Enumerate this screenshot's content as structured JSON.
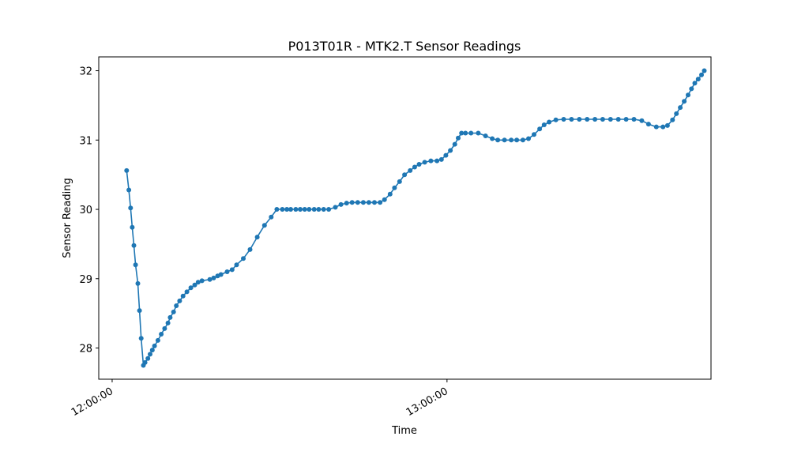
{
  "chart_data": {
    "type": "line",
    "title": "P013T01R - MTK2.T Sensor Readings",
    "xlabel": "Time",
    "ylabel": "Sensor Reading",
    "x_tick_labels": [
      "12:00:00",
      "13:00:00"
    ],
    "x_tick_values_min": [
      0,
      60
    ],
    "xlim_min": [
      -2.4,
      107.3
    ],
    "y_tick_labels": [
      "28",
      "29",
      "30",
      "31",
      "32"
    ],
    "y_tick_values": [
      28,
      29,
      30,
      31,
      32
    ],
    "ylim": [
      27.55,
      32.2
    ],
    "grid": false,
    "legend": "none",
    "series_color": "#1f77b4",
    "series": [
      {
        "x_min": [
          2.6,
          3.0,
          3.3,
          3.6,
          3.9,
          4.2,
          4.6,
          4.9,
          5.2,
          5.6,
          5.9,
          6.4,
          6.8,
          7.2,
          7.6,
          8.2,
          8.8,
          9.4,
          10.0,
          10.4,
          11.0,
          11.5,
          12.1,
          12.7,
          13.4,
          14.1,
          14.8,
          15.4,
          16.1,
          17.5,
          18.2,
          18.9,
          19.5,
          20.6,
          21.5,
          22.3,
          23.5,
          24.7,
          26.0,
          27.3,
          28.5,
          29.5,
          30.5,
          31.3,
          32.0,
          32.9,
          33.7,
          34.5,
          35.3,
          36.2,
          37.0,
          37.9,
          38.8,
          40.0,
          41.0,
          42.0,
          43.0,
          44.0,
          45.0,
          46.0,
          47.0,
          48.0,
          48.8,
          49.8,
          50.6,
          51.5,
          52.4,
          53.4,
          54.2,
          55.0,
          56.0,
          57.1,
          58.2,
          59.0,
          59.8,
          60.6,
          61.4,
          62.0,
          62.6,
          63.3,
          64.3,
          65.6,
          66.9,
          68.1,
          69.1,
          70.3,
          71.5,
          72.5,
          73.6,
          74.6,
          75.6,
          76.6,
          77.4,
          78.3,
          79.5,
          80.9,
          82.3,
          83.7,
          85.1,
          86.5,
          87.9,
          89.3,
          90.7,
          92.1,
          93.5,
          94.9,
          96.1,
          97.5,
          98.7,
          99.5,
          100.4,
          101.1,
          101.8,
          102.5,
          103.2,
          103.8,
          104.4,
          105.0,
          105.6,
          106.1
        ],
        "values": [
          30.56,
          30.28,
          30.02,
          29.74,
          29.48,
          29.2,
          28.93,
          28.54,
          28.14,
          27.75,
          27.79,
          27.85,
          27.91,
          27.97,
          28.03,
          28.11,
          28.2,
          28.28,
          28.36,
          28.44,
          28.52,
          28.61,
          28.68,
          28.75,
          28.81,
          28.87,
          28.91,
          28.95,
          28.97,
          28.99,
          29.01,
          29.04,
          29.06,
          29.1,
          29.13,
          29.2,
          29.29,
          29.42,
          29.6,
          29.77,
          29.89,
          30.0,
          30.0,
          30.0,
          30.0,
          30.0,
          30.0,
          30.0,
          30.0,
          30.0,
          30.0,
          30.0,
          30.0,
          30.03,
          30.07,
          30.09,
          30.1,
          30.1,
          30.1,
          30.1,
          30.1,
          30.1,
          30.14,
          30.22,
          30.31,
          30.4,
          30.5,
          30.56,
          30.61,
          30.65,
          30.68,
          30.7,
          30.7,
          30.72,
          30.78,
          30.85,
          30.94,
          31.03,
          31.1,
          31.1,
          31.1,
          31.1,
          31.06,
          31.02,
          31.0,
          31.0,
          31.0,
          31.0,
          31.0,
          31.02,
          31.08,
          31.16,
          31.22,
          31.26,
          31.29,
          31.3,
          31.3,
          31.3,
          31.3,
          31.3,
          31.3,
          31.3,
          31.3,
          31.3,
          31.3,
          31.28,
          31.23,
          31.19,
          31.19,
          31.21,
          31.29,
          31.38,
          31.47,
          31.56,
          31.65,
          31.74,
          31.82,
          31.88,
          31.94,
          32.0
        ]
      }
    ]
  }
}
